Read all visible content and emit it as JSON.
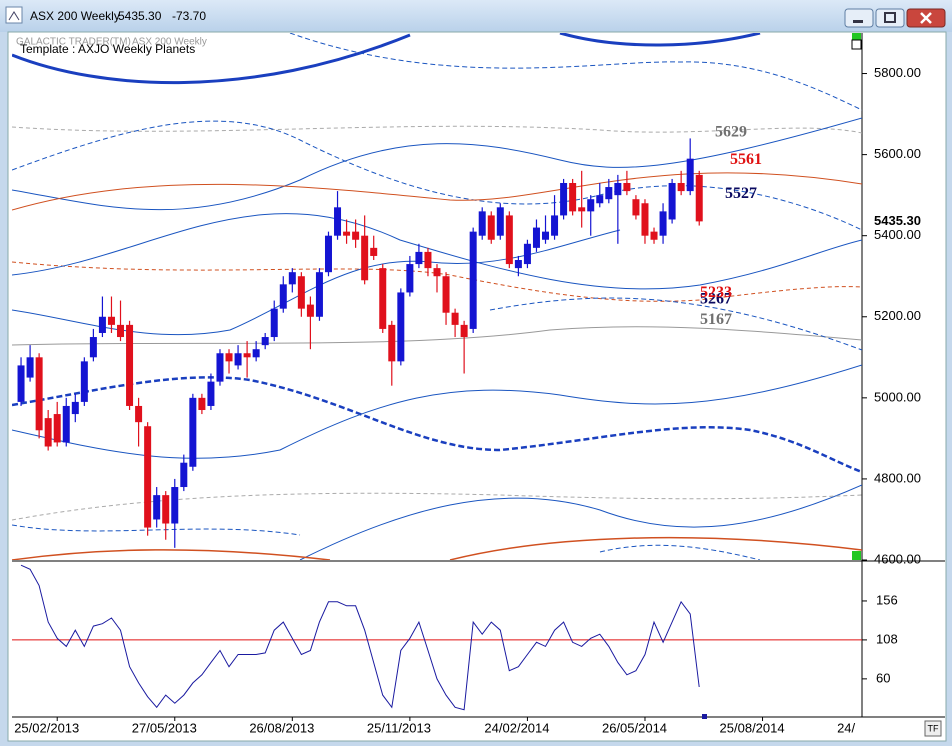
{
  "window": {
    "title": "ASX 200 Weekly",
    "price": "5435.30",
    "change": "-73.70"
  },
  "chart_data": [
    {
      "type": "candlestick",
      "title": "GALACTIC TRADER(TM)",
      "subtitle": "ASX 200 Weekly",
      "template": "Template : AXJO Weekly Planets",
      "up_color": "#1414d2",
      "down_color": "#e0101c",
      "open": [
        4990,
        5050,
        5100,
        4950,
        4960,
        4890,
        4960,
        4990,
        5100,
        5160,
        5200,
        5180,
        5180,
        4980,
        4930,
        4700,
        4760,
        4690,
        4780,
        4830,
        5000,
        4980,
        5040,
        5110,
        5080,
        5110,
        5100,
        5130,
        5150,
        5220,
        5280,
        5300,
        5230,
        5200,
        5310,
        5400,
        5410,
        5410,
        5400,
        5370,
        5320,
        5180,
        5090,
        5260,
        5330,
        5360,
        5320,
        5300,
        5210,
        5180,
        5170,
        5400,
        5450,
        5400,
        5450,
        5320,
        5330,
        5370,
        5390,
        5400,
        5450,
        5530,
        5470,
        5460,
        5480,
        5490,
        5500,
        5530,
        5490,
        5480,
        5410,
        5400,
        5440,
        5530,
        5510,
        5550
      ],
      "high": [
        5100,
        5130,
        5110,
        4970,
        4990,
        5000,
        5010,
        5100,
        5170,
        5250,
        5250,
        5240,
        5190,
        5000,
        4940,
        4780,
        4770,
        4800,
        4860,
        5010,
        5010,
        5060,
        5120,
        5120,
        5130,
        5140,
        5140,
        5160,
        5240,
        5300,
        5320,
        5310,
        5250,
        5320,
        5410,
        5510,
        5440,
        5440,
        5450,
        5400,
        5330,
        5190,
        5270,
        5350,
        5380,
        5370,
        5330,
        5310,
        5220,
        5190,
        5420,
        5470,
        5460,
        5480,
        5460,
        5350,
        5390,
        5440,
        5450,
        5500,
        5540,
        5540,
        5560,
        5500,
        5530,
        5540,
        5550,
        5560,
        5500,
        5490,
        5420,
        5480,
        5540,
        5560,
        5640,
        5560
      ],
      "low": [
        4980,
        5040,
        4900,
        4870,
        4880,
        4880,
        4940,
        4980,
        5090,
        5150,
        5160,
        5140,
        4970,
        4880,
        4660,
        4680,
        4650,
        4630,
        4770,
        4820,
        4960,
        4970,
        5030,
        5060,
        5070,
        5050,
        5090,
        5120,
        5140,
        5210,
        5260,
        5200,
        5120,
        5190,
        5300,
        5390,
        5380,
        5370,
        5280,
        5340,
        5160,
        5030,
        5080,
        5250,
        5320,
        5300,
        5260,
        5180,
        5150,
        5060,
        5160,
        5390,
        5380,
        5390,
        5320,
        5300,
        5320,
        5360,
        5380,
        5390,
        5440,
        5450,
        5420,
        5400,
        5470,
        5480,
        5380,
        5500,
        5440,
        5380,
        5380,
        5380,
        5430,
        5500,
        5500,
        5425
      ],
      "close": [
        5080,
        5100,
        4920,
        4880,
        4890,
        4980,
        4990,
        5090,
        5150,
        5200,
        5180,
        5150,
        4980,
        4940,
        4680,
        4760,
        4690,
        4780,
        4840,
        5000,
        4970,
        5040,
        5110,
        5090,
        5110,
        5100,
        5120,
        5150,
        5220,
        5280,
        5310,
        5220,
        5200,
        5310,
        5400,
        5470,
        5400,
        5390,
        5290,
        5350,
        5170,
        5090,
        5260,
        5330,
        5360,
        5320,
        5300,
        5210,
        5180,
        5150,
        5410,
        5460,
        5390,
        5470,
        5330,
        5340,
        5380,
        5420,
        5410,
        5450,
        5530,
        5460,
        5460,
        5490,
        5500,
        5520,
        5530,
        5510,
        5450,
        5400,
        5390,
        5460,
        5530,
        5510,
        5590,
        5435.3
      ],
      "last_price": {
        "value": 5435.3,
        "label": "5435.30"
      },
      "xlim": [
        -1,
        93
      ],
      "ylim": [
        4600,
        5900
      ],
      "yticks": [
        {
          "value": 4600,
          "label": "4600.00"
        },
        {
          "value": 4800,
          "label": "4800.00"
        },
        {
          "value": 5000,
          "label": "5000.00"
        },
        {
          "value": 5200,
          "label": "5200.00"
        },
        {
          "value": 5400,
          "label": "5400.00"
        },
        {
          "value": 5600,
          "label": "5600.00"
        },
        {
          "value": 5800,
          "label": "5800.00"
        }
      ],
      "annotations": [
        {
          "value": 5629,
          "color": "#707070"
        },
        {
          "value": 5561,
          "color": "#e01010"
        },
        {
          "value": 5527,
          "color": "#0a0a60"
        },
        {
          "value": 5267,
          "color": "#0a0a60"
        },
        {
          "value": 5233,
          "color": "#e01010"
        },
        {
          "value": 5167,
          "color": "#707070"
        }
      ]
    },
    {
      "type": "line",
      "color": "#1a1aa0",
      "values": [
        200,
        195,
        175,
        130,
        110,
        100,
        120,
        100,
        125,
        128,
        135,
        120,
        75,
        55,
        38,
        25,
        40,
        30,
        40,
        55,
        65,
        80,
        95,
        75,
        90,
        90,
        90,
        92,
        120,
        130,
        110,
        90,
        95,
        130,
        155,
        155,
        150,
        150,
        120,
        80,
        40,
        25,
        95,
        110,
        130,
        95,
        60,
        40,
        25,
        22,
        130,
        115,
        130,
        120,
        70,
        75,
        90,
        105,
        100,
        120,
        130,
        105,
        100,
        110,
        115,
        100,
        80,
        65,
        70,
        90,
        130,
        105,
        130,
        155,
        140,
        50
      ],
      "reference_line": 108,
      "reference_color": "#e01010",
      "xlim": [
        -1,
        93
      ],
      "ylim": [
        13,
        204
      ],
      "yticks": [
        60,
        108,
        156
      ],
      "xticks": [
        {
          "value": 4,
          "label": "25/02/2013"
        },
        {
          "value": 17,
          "label": "27/05/2013"
        },
        {
          "value": 30,
          "label": "26/08/2013"
        },
        {
          "value": 43,
          "label": "25/11/2013"
        },
        {
          "value": 56,
          "label": "24/02/2014"
        },
        {
          "value": 69,
          "label": "26/05/2014"
        },
        {
          "value": 82,
          "label": "25/08/2014"
        },
        {
          "value": 95,
          "label": "24/"
        }
      ]
    }
  ]
}
